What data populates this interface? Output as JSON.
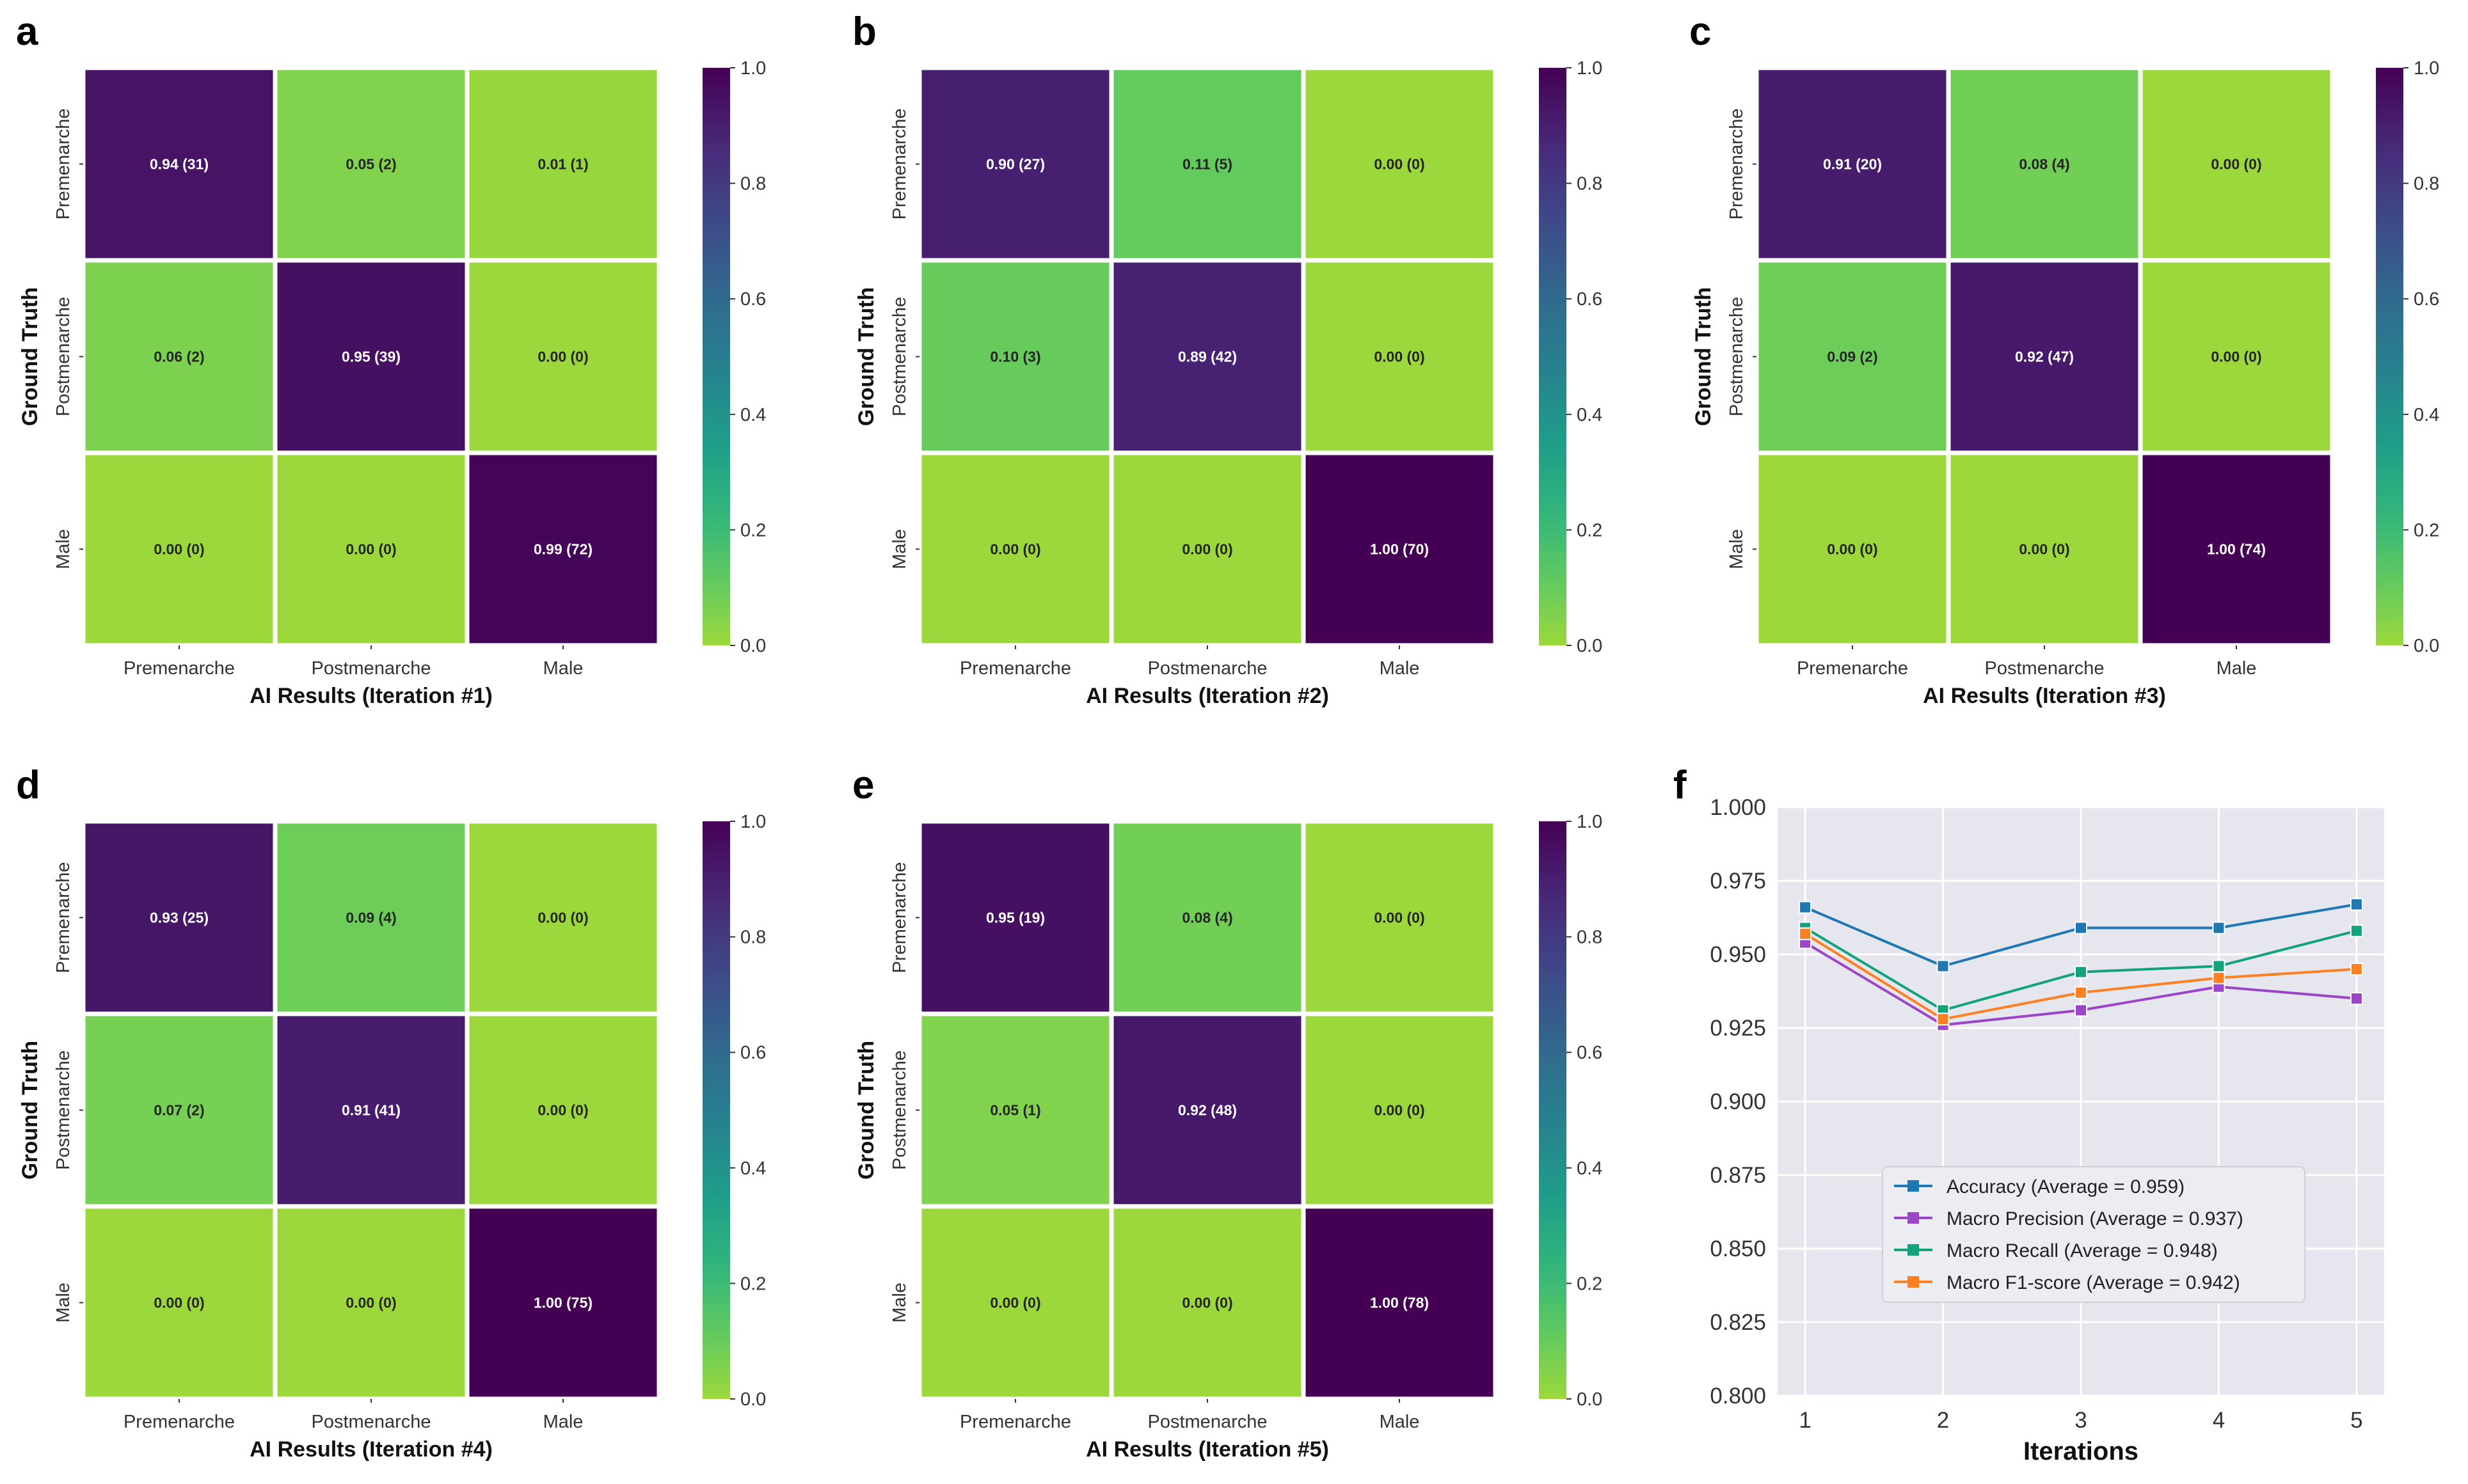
{
  "colors": {
    "viridis": [
      "#440154",
      "#482878",
      "#3e4989",
      "#31688e",
      "#26828e",
      "#1f9e89",
      "#35b779",
      "#6ece58",
      "#b5de2b",
      "#fde725"
    ],
    "grid_bg": "#e6e6ef",
    "series": [
      "#1f77b4",
      "#9b45c9",
      "#12a37c",
      "#ff7f23"
    ]
  },
  "chart_data": [
    {
      "type": "heatmap",
      "panel": "a",
      "ylabel": "Ground Truth",
      "xlabel": "AI Results (Iteration #1)",
      "row_labels": [
        "Premenarche",
        "Postmenarche",
        "Male"
      ],
      "col_labels": [
        "Premenarche",
        "Postmenarche",
        "Male"
      ],
      "values": [
        [
          0.94,
          0.05,
          0.01
        ],
        [
          0.06,
          0.95,
          0.0
        ],
        [
          0.0,
          0.0,
          0.99
        ]
      ],
      "counts": [
        [
          31,
          2,
          1
        ],
        [
          2,
          39,
          0
        ],
        [
          0,
          0,
          72
        ]
      ],
      "cell_text": [
        [
          "0.94 (31)",
          "0.05 (2)",
          "0.01 (1)"
        ],
        [
          "0.06 (2)",
          "0.95 (39)",
          "0.00 (0)"
        ],
        [
          "0.00 (0)",
          "0.00 (0)",
          "0.99 (72)"
        ]
      ],
      "colorbar_ticks": [
        "1.0",
        "0.8",
        "0.6",
        "0.4",
        "0.2",
        "0.0"
      ],
      "vmin": 0,
      "vmax": 1
    },
    {
      "type": "heatmap",
      "panel": "b",
      "ylabel": "Ground Truth",
      "xlabel": "AI Results (Iteration #2)",
      "row_labels": [
        "Premenarche",
        "Postmenarche",
        "Male"
      ],
      "col_labels": [
        "Premenarche",
        "Postmenarche",
        "Male"
      ],
      "values": [
        [
          0.9,
          0.11,
          0.0
        ],
        [
          0.1,
          0.89,
          0.0
        ],
        [
          0.0,
          0.0,
          1.0
        ]
      ],
      "counts": [
        [
          27,
          5,
          0
        ],
        [
          3,
          42,
          0
        ],
        [
          0,
          0,
          70
        ]
      ],
      "cell_text": [
        [
          "0.90 (27)",
          "0.11 (5)",
          "0.00 (0)"
        ],
        [
          "0.10 (3)",
          "0.89 (42)",
          "0.00 (0)"
        ],
        [
          "0.00 (0)",
          "0.00 (0)",
          "1.00 (70)"
        ]
      ],
      "colorbar_ticks": [
        "1.0",
        "0.8",
        "0.6",
        "0.4",
        "0.2",
        "0.0"
      ],
      "vmin": 0,
      "vmax": 1
    },
    {
      "type": "heatmap",
      "panel": "c",
      "ylabel": "Ground Truth",
      "xlabel": "AI Results (Iteration #3)",
      "row_labels": [
        "Premenarche",
        "Postmenarche",
        "Male"
      ],
      "col_labels": [
        "Premenarche",
        "Postmenarche",
        "Male"
      ],
      "values": [
        [
          0.91,
          0.08,
          0.0
        ],
        [
          0.09,
          0.92,
          0.0
        ],
        [
          0.0,
          0.0,
          1.0
        ]
      ],
      "counts": [
        [
          20,
          4,
          0
        ],
        [
          2,
          47,
          0
        ],
        [
          0,
          0,
          74
        ]
      ],
      "cell_text": [
        [
          "0.91 (20)",
          "0.08 (4)",
          "0.00 (0)"
        ],
        [
          "0.09 (2)",
          "0.92 (47)",
          "0.00 (0)"
        ],
        [
          "0.00 (0)",
          "0.00 (0)",
          "1.00 (74)"
        ]
      ],
      "colorbar_ticks": [
        "1.0",
        "0.8",
        "0.6",
        "0.4",
        "0.2",
        "0.0"
      ],
      "vmin": 0,
      "vmax": 1
    },
    {
      "type": "heatmap",
      "panel": "d",
      "ylabel": "Ground Truth",
      "xlabel": "AI Results (Iteration #4)",
      "row_labels": [
        "Premenarche",
        "Postmenarche",
        "Male"
      ],
      "col_labels": [
        "Premenarche",
        "Postmenarche",
        "Male"
      ],
      "values": [
        [
          0.93,
          0.09,
          0.0
        ],
        [
          0.07,
          0.91,
          0.0
        ],
        [
          0.0,
          0.0,
          1.0
        ]
      ],
      "counts": [
        [
          25,
          4,
          0
        ],
        [
          2,
          41,
          0
        ],
        [
          0,
          0,
          75
        ]
      ],
      "cell_text": [
        [
          "0.93 (25)",
          "0.09 (4)",
          "0.00 (0)"
        ],
        [
          "0.07 (2)",
          "0.91 (41)",
          "0.00 (0)"
        ],
        [
          "0.00 (0)",
          "0.00 (0)",
          "1.00 (75)"
        ]
      ],
      "colorbar_ticks": [
        "1.0",
        "0.8",
        "0.6",
        "0.4",
        "0.2",
        "0.0"
      ],
      "vmin": 0,
      "vmax": 1
    },
    {
      "type": "heatmap",
      "panel": "e",
      "ylabel": "Ground Truth",
      "xlabel": "AI Results (Iteration #5)",
      "row_labels": [
        "Premenarche",
        "Postmenarche",
        "Male"
      ],
      "col_labels": [
        "Premenarche",
        "Postmenarche",
        "Male"
      ],
      "values": [
        [
          0.95,
          0.08,
          0.0
        ],
        [
          0.05,
          0.92,
          0.0
        ],
        [
          0.0,
          0.0,
          1.0
        ]
      ],
      "counts": [
        [
          19,
          4,
          0
        ],
        [
          1,
          48,
          0
        ],
        [
          0,
          0,
          78
        ]
      ],
      "cell_text": [
        [
          "0.95 (19)",
          "0.08 (4)",
          "0.00 (0)"
        ],
        [
          "0.05 (1)",
          "0.92 (48)",
          "0.00 (0)"
        ],
        [
          "0.00 (0)",
          "0.00 (0)",
          "1.00 (78)"
        ]
      ],
      "colorbar_ticks": [
        "1.0",
        "0.8",
        "0.6",
        "0.4",
        "0.2",
        "0.0"
      ],
      "vmin": 0,
      "vmax": 1
    },
    {
      "type": "line",
      "panel": "f",
      "xlabel": "Iterations",
      "ylabel": "",
      "x": [
        1,
        2,
        3,
        4,
        5
      ],
      "x_tick_labels": [
        "1",
        "2",
        "3",
        "4",
        "5"
      ],
      "ylim": [
        0.8,
        1.0
      ],
      "y_ticks": [
        0.8,
        0.825,
        0.85,
        0.875,
        0.9,
        0.925,
        0.95,
        0.975,
        1.0
      ],
      "y_tick_labels": [
        "0.800",
        "0.825",
        "0.850",
        "0.875",
        "0.900",
        "0.925",
        "0.950",
        "0.975",
        "1.000"
      ],
      "grid": true,
      "legend_position": "lower-center",
      "series": [
        {
          "name": "Accuracy",
          "legend": "Accuracy  (Average = 0.959)",
          "values": [
            0.966,
            0.946,
            0.959,
            0.959,
            0.967
          ]
        },
        {
          "name": "Macro Precision",
          "legend": "Macro Precision  (Average = 0.937)",
          "values": [
            0.954,
            0.926,
            0.931,
            0.939,
            0.935
          ]
        },
        {
          "name": "Macro Recall",
          "legend": "Macro Recall  (Average = 0.948)",
          "values": [
            0.959,
            0.931,
            0.944,
            0.946,
            0.958
          ]
        },
        {
          "name": "Macro F1-score",
          "legend": "Macro F1-score (Average = 0.942)",
          "values": [
            0.957,
            0.928,
            0.937,
            0.942,
            0.945
          ]
        }
      ]
    }
  ]
}
